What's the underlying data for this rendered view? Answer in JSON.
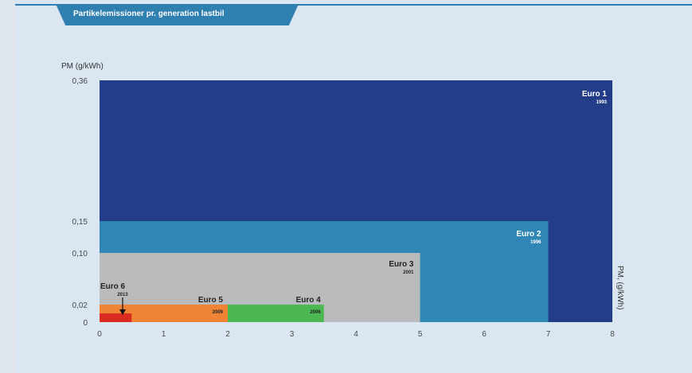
{
  "title": "Partikelemissioner pr. generation lastbil",
  "chart_data": {
    "type": "area",
    "ylabel": "PM (g/kWh)",
    "ylabel_right": "PM, (g/kWh)",
    "x_ticks": [
      "0",
      "1",
      "2",
      "3",
      "4",
      "5",
      "6",
      "7",
      "8"
    ],
    "y_ticks": [
      {
        "value": 0.36,
        "label": "0,36"
      },
      {
        "value": 0.15,
        "label": "0,15"
      },
      {
        "value": 0.1,
        "label": "0,10"
      },
      {
        "value": 0.02,
        "label": "0,02"
      },
      {
        "value": 0,
        "label": "0"
      }
    ],
    "xlim": [
      0,
      8
    ],
    "series": [
      {
        "name": "Euro 1",
        "year": "1993",
        "x": 8,
        "y": 0.36,
        "color": "#233d88",
        "text_color": "#ffffff"
      },
      {
        "name": "Euro 2",
        "year": "1996",
        "x": 7,
        "y": 0.15,
        "color": "#3087b5",
        "text_color": "#ffffff"
      },
      {
        "name": "Euro 3",
        "year": "2001",
        "x": 5,
        "y": 0.1,
        "color": "#b9bbbd",
        "text_color": "#222222"
      },
      {
        "name": "Euro 4",
        "year": "2006",
        "x_start": 2,
        "x": 3.5,
        "y": 0.02,
        "color": "#4cb852",
        "text_color": "#222222"
      },
      {
        "name": "Euro 5",
        "year": "2009",
        "x": 2,
        "y": 0.02,
        "color": "#ef8434",
        "text_color": "#222222"
      },
      {
        "name": "Euro 6",
        "year": "2013",
        "x": 0.5,
        "y": 0.01,
        "color": "#d92b20",
        "text_color": "#222222"
      }
    ]
  }
}
